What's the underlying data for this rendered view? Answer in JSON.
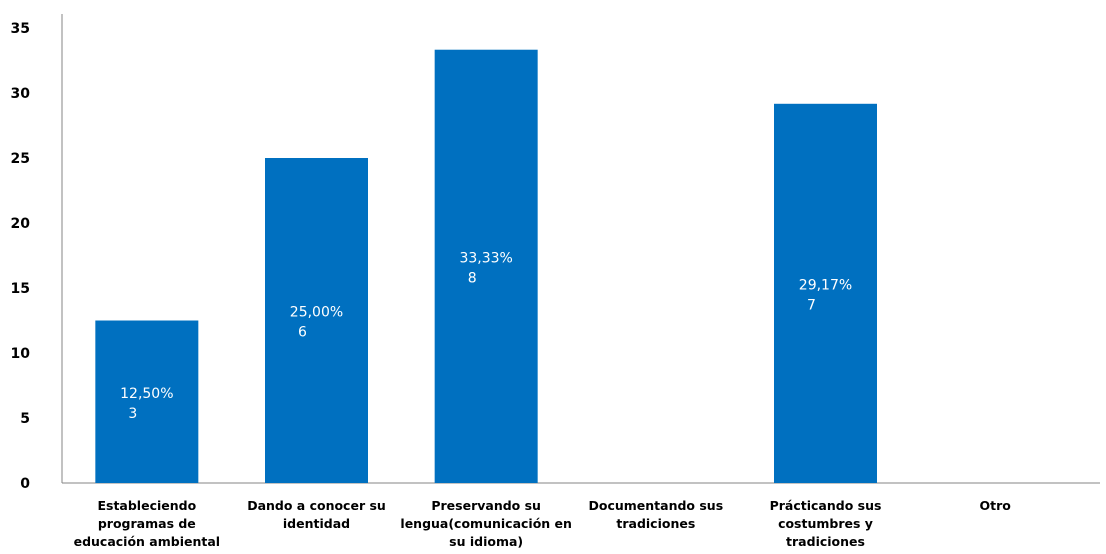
{
  "chart_data": {
    "type": "bar",
    "title": "",
    "xlabel": "",
    "ylabel": "",
    "ylim": [
      0,
      35
    ],
    "yticks": [
      0,
      5,
      10,
      15,
      20,
      25,
      30,
      35
    ],
    "grid": false,
    "legend": "none",
    "bar_color": "#0070C0",
    "categories": [
      [
        "Estableciendo",
        "programas de",
        "educación ambiental"
      ],
      [
        "Dando a conocer su",
        "identidad"
      ],
      [
        "Preservando su",
        "lengua(comunicación en",
        "su idioma)"
      ],
      [
        "Documentando sus",
        "tradiciones"
      ],
      [
        "Prácticando sus",
        "costumbres y",
        "tradiciones"
      ],
      [
        "Otro"
      ]
    ],
    "values": [
      12.5,
      25.0,
      33.33,
      0,
      29.17,
      0
    ],
    "data_labels": [
      [
        "12,50%",
        "3"
      ],
      [
        "25,00%",
        "6"
      ],
      [
        "33,33%",
        "8"
      ],
      null,
      [
        "29,17%",
        "7"
      ],
      null
    ]
  }
}
